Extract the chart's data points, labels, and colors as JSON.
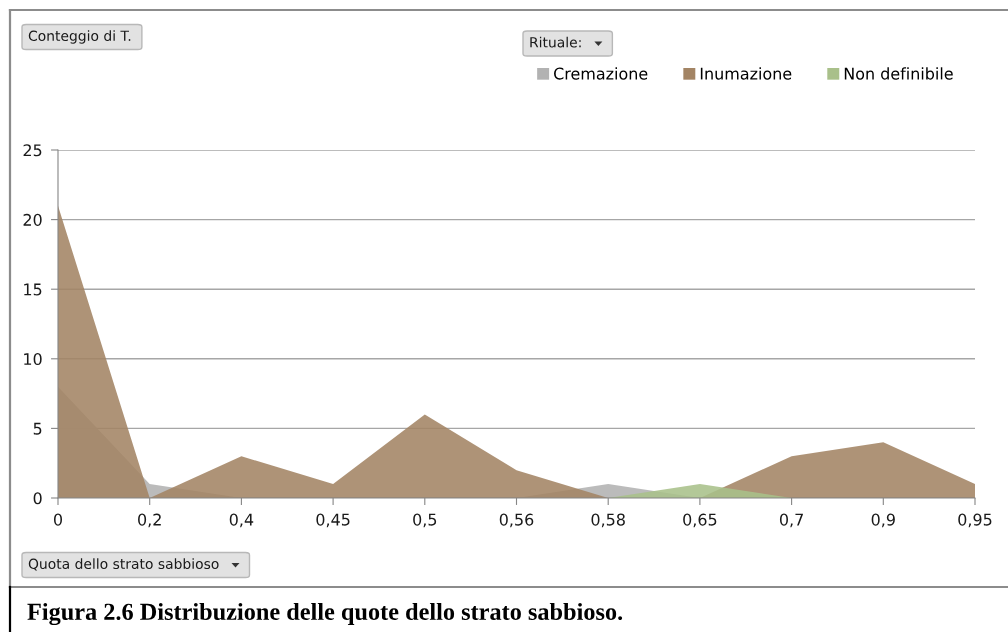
{
  "chart_data": {
    "type": "area",
    "xlabel": "Quota dello strato sabbioso",
    "legend_title": "Rituale:",
    "categories": [
      "0",
      "0,2",
      "0,4",
      "0,45",
      "0,5",
      "0,56",
      "0,58",
      "0,65",
      "0,7",
      "0,9",
      "0,95"
    ],
    "series": [
      {
        "name": "Cremazione",
        "color": "#b2b2b2",
        "values": [
          8,
          1,
          0,
          0,
          0,
          0,
          1,
          0,
          0,
          0,
          0
        ]
      },
      {
        "name": "Inumazione",
        "color": "#a38464",
        "values": [
          21,
          0,
          3,
          1,
          6,
          2,
          0,
          0,
          3,
          4,
          1
        ]
      },
      {
        "name": "Non definibile",
        "color": "#a9c08a",
        "values": [
          0,
          0,
          0,
          0,
          0,
          0,
          0,
          1,
          0,
          0,
          0
        ]
      }
    ],
    "ylim": [
      0,
      25
    ],
    "yticks": [
      0,
      5,
      10,
      15,
      20,
      25
    ],
    "grid": "y",
    "legend": "top right",
    "annotations": [
      "Conteggio di T.",
      "Figura 2.6 Distribuzione delle quote dello strato sabbioso."
    ]
  }
}
